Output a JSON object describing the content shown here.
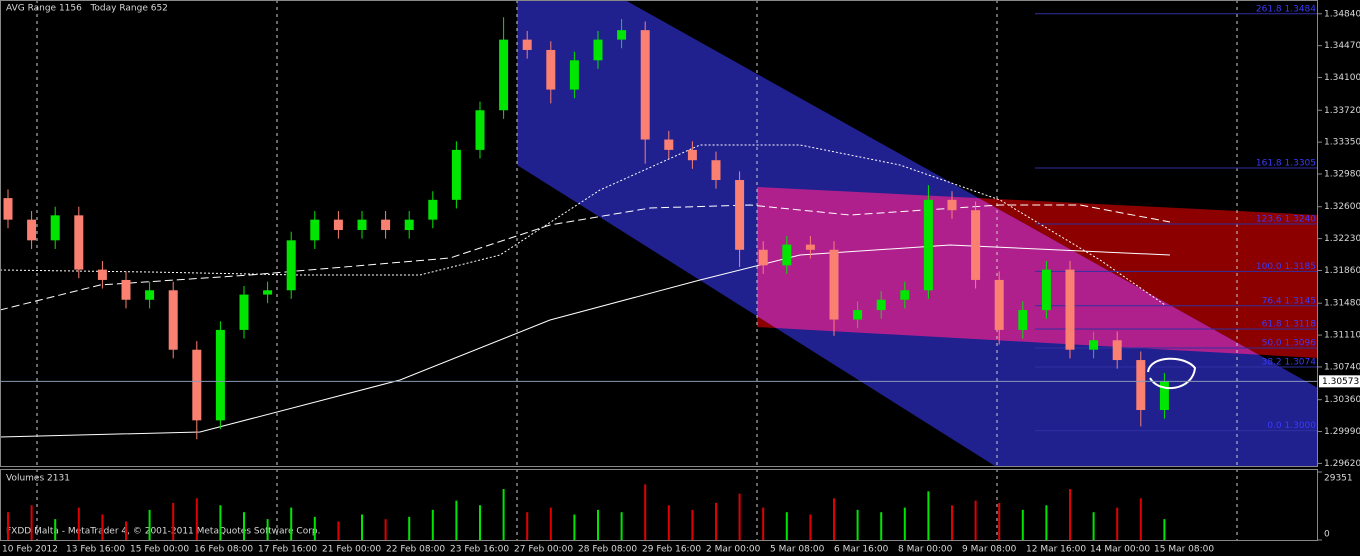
{
  "chart_data": {
    "type": "candlestick",
    "title": "AVG Range 1156   Today Range 652",
    "footnote": "FXDD Malta - MetaTrader 4, © 2001-2011 MetaQuotes Software Corp.",
    "up_color": "#00e600",
    "down_color": "#fa8072",
    "open": [
      1.327,
      1.3245,
      1.3221,
      1.325,
      1.3187,
      1.3175,
      1.3152,
      1.3163,
      1.3094,
      1.3012,
      1.3117,
      1.3158,
      1.3163,
      1.3221,
      1.3245,
      1.3233,
      1.3245,
      1.3233,
      1.3245,
      1.3268,
      1.3326,
      1.3372,
      1.3454,
      1.3442,
      1.3396,
      1.343,
      1.3454,
      1.3465,
      1.3338,
      1.3326,
      1.3314,
      1.3291,
      1.321,
      1.3192,
      1.3216,
      1.321,
      1.3129,
      1.314,
      1.3152,
      1.3163,
      1.3268,
      1.3256,
      1.3175,
      1.3117,
      1.314,
      1.3187,
      1.3094,
      1.3105,
      1.3082,
      1.3024
    ],
    "high": [
      1.328,
      1.3255,
      1.326,
      1.326,
      1.3197,
      1.3185,
      1.3173,
      1.3173,
      1.3104,
      1.3127,
      1.3168,
      1.3173,
      1.3231,
      1.3255,
      1.3255,
      1.3255,
      1.3255,
      1.3255,
      1.3278,
      1.3336,
      1.3382,
      1.348,
      1.3464,
      1.3452,
      1.344,
      1.3464,
      1.3478,
      1.3475,
      1.3348,
      1.3336,
      1.3324,
      1.3301,
      1.322,
      1.3226,
      1.3226,
      1.322,
      1.315,
      1.3162,
      1.3173,
      1.3285,
      1.3278,
      1.3266,
      1.3185,
      1.315,
      1.3197,
      1.3197,
      1.3115,
      1.3115,
      1.3092,
      1.3067
    ],
    "low": [
      1.3235,
      1.3211,
      1.3211,
      1.3177,
      1.3165,
      1.3142,
      1.3142,
      1.3084,
      1.299,
      1.3002,
      1.3107,
      1.3148,
      1.3153,
      1.3211,
      1.3223,
      1.3223,
      1.3223,
      1.3223,
      1.3235,
      1.3258,
      1.3316,
      1.3362,
      1.3432,
      1.338,
      1.3386,
      1.342,
      1.3444,
      1.331,
      1.3316,
      1.3304,
      1.3281,
      1.319,
      1.3182,
      1.3182,
      1.32,
      1.311,
      1.3119,
      1.313,
      1.3142,
      1.3153,
      1.3246,
      1.3165,
      1.31,
      1.3107,
      1.313,
      1.3084,
      1.3084,
      1.3072,
      1.3005,
      1.3014
    ],
    "close": [
      1.3245,
      1.3221,
      1.325,
      1.3187,
      1.3175,
      1.3152,
      1.3163,
      1.3094,
      1.3012,
      1.3117,
      1.3158,
      1.3163,
      1.3221,
      1.3245,
      1.3233,
      1.3245,
      1.3233,
      1.3245,
      1.3268,
      1.3326,
      1.3372,
      1.3454,
      1.3442,
      1.3396,
      1.343,
      1.3454,
      1.3465,
      1.3338,
      1.3326,
      1.3314,
      1.3291,
      1.321,
      1.3192,
      1.3216,
      1.321,
      1.3129,
      1.314,
      1.3152,
      1.3163,
      1.3268,
      1.3256,
      1.3175,
      1.3117,
      1.314,
      1.3187,
      1.3094,
      1.3105,
      1.3082,
      1.3024,
      1.3057
    ],
    "current_price": 1.30573,
    "ylim": [
      1.2959,
      1.35
    ],
    "yticks": [
      {
        "value": 1.3484,
        "label": "1.34840"
      },
      {
        "value": 1.3447,
        "label": "1.34470"
      },
      {
        "value": 1.341,
        "label": "1.34100"
      },
      {
        "value": 1.3372,
        "label": "1.33720"
      },
      {
        "value": 1.3335,
        "label": "1.33350"
      },
      {
        "value": 1.3298,
        "label": "1.32980"
      },
      {
        "value": 1.326,
        "label": "1.32600"
      },
      {
        "value": 1.3223,
        "label": "1.32230"
      },
      {
        "value": 1.3186,
        "label": "1.31860"
      },
      {
        "value": 1.3148,
        "label": "1.31480"
      },
      {
        "value": 1.3111,
        "label": "1.31110"
      },
      {
        "value": 1.3074,
        "label": "1.30740"
      },
      {
        "value": 1.3036,
        "label": "1.30360"
      },
      {
        "value": 1.2999,
        "label": "1.29990"
      },
      {
        "value": 1.2962,
        "label": "1.29620"
      }
    ],
    "fib_levels": [
      {
        "value": 1.3484,
        "label": "261.8 1.3484"
      },
      {
        "value": 1.3305,
        "label": "161.8 1.3305"
      },
      {
        "value": 1.324,
        "label": "123.6 1.3240"
      },
      {
        "value": 1.3185,
        "label": "100.0 1.3185"
      },
      {
        "value": 1.3145,
        "label": "76.4 1.3145"
      },
      {
        "value": 1.3118,
        "label": "61.8 1.3118"
      },
      {
        "value": 1.3096,
        "label": "50.0 1.3096"
      },
      {
        "value": 1.3074,
        "label": "38.2 1.3074"
      },
      {
        "value": 1.3,
        "label": "0.0 1.3000"
      }
    ],
    "time_labels": [
      "10 Feb 2012",
      "13 Feb 16:00",
      "15 Feb 00:00",
      "16 Feb 08:00",
      "17 Feb 16:00",
      "21 Feb 00:00",
      "22 Feb 08:00",
      "23 Feb 16:00",
      "27 Feb 00:00",
      "28 Feb 08:00",
      "29 Feb 16:00",
      "2 Mar 00:00",
      "5 Mar 08:00",
      "6 Mar 16:00",
      "8 Mar 00:00",
      "9 Mar 08:00",
      "12 Mar 16:00",
      "14 Mar 00:00",
      "15 Mar 08:00"
    ],
    "volume": {
      "title": "Volumes 2131",
      "values": [
        12000,
        15000,
        9000,
        14000,
        11000,
        8000,
        13000,
        16000,
        18000,
        15000,
        12000,
        9000,
        14000,
        10000,
        8000,
        11000,
        9000,
        10000,
        13000,
        17000,
        15000,
        22000,
        12000,
        14000,
        11000,
        13000,
        12000,
        24000,
        15000,
        13000,
        16000,
        20000,
        14000,
        12000,
        11000,
        18000,
        13000,
        12000,
        14000,
        21000,
        15000,
        17000,
        16000,
        13000,
        15000,
        22000,
        12000,
        14000,
        18000,
        9000
      ],
      "ylim": [
        0,
        29351
      ],
      "yticks": [
        29351,
        0
      ]
    }
  }
}
